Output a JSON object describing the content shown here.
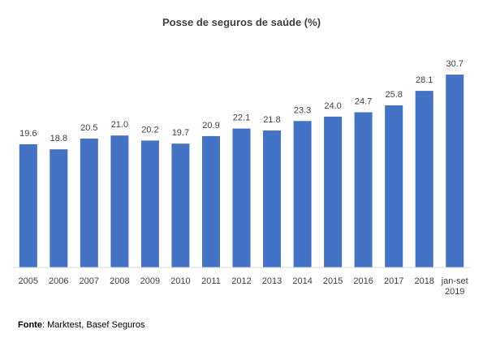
{
  "chart_data": {
    "type": "bar",
    "title": "Posse de seguros de saúde (%)",
    "categories": [
      "2005",
      "2006",
      "2007",
      "2008",
      "2009",
      "2010",
      "2011",
      "2012",
      "2013",
      "2014",
      "2015",
      "2016",
      "2017",
      "2018",
      "jan-set 2019"
    ],
    "values": [
      19.6,
      18.8,
      20.5,
      21.0,
      20.2,
      19.7,
      20.9,
      22.1,
      21.8,
      23.3,
      24.0,
      24.7,
      25.8,
      28.1,
      30.7
    ],
    "value_labels": [
      "19.6",
      "18.8",
      "20.5",
      "21.0",
      "20.2",
      "19.7",
      "20.9",
      "22.1",
      "21.8",
      "23.3",
      "24.0",
      "24.7",
      "25.8",
      "28.1",
      "30.7"
    ],
    "ylim": [
      0,
      32.5
    ],
    "grid": false,
    "legend": "none",
    "bar_color": "#4472C4",
    "axis_color": "#D9D9D9"
  },
  "footer": {
    "source_label": "Fonte",
    "source_text": ": Marktest, Basef Seguros"
  }
}
